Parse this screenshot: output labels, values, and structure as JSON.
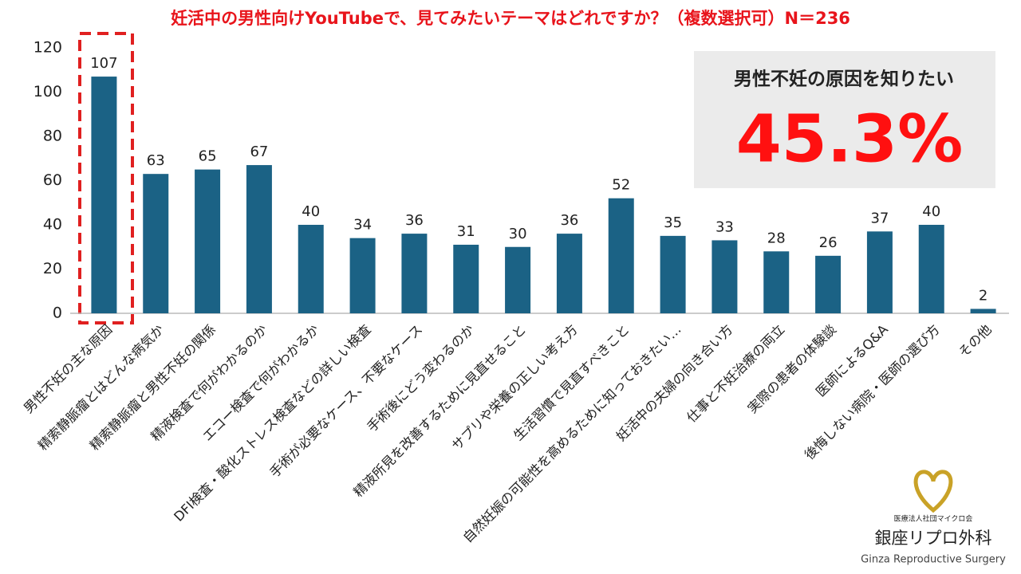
{
  "chart_data": {
    "type": "bar",
    "title": "妊活中の男性向けYouTubeで、見てみたいテーマはどれですか？（複数選択可）N＝236",
    "categories": [
      "男性不妊の主な原因",
      "精索静脈瘤とはどんな病気か",
      "精索静脈瘤と男性不妊の関係",
      "精液検査で何がわかるのか",
      "エコー検査で何がわかるか",
      "DFI検査・酸化ストレス検査などの詳しい検査",
      "手術が必要なケース、不要なケース",
      "手術後にどう変わるのか",
      "精液所見を改善するために見直せること",
      "サプリや栄養の正しい考え方",
      "生活習慣で見直すべきこと",
      "自然妊娠の可能性を高めるために知っておきたい…",
      "妊活中の夫婦の向き合い方",
      "仕事と不妊治療の両立",
      "実際の患者の体験談",
      "医師によるQ&A",
      "後悔しない病院・医師の選び方",
      "その他"
    ],
    "values": [
      107,
      63,
      65,
      67,
      40,
      34,
      36,
      31,
      30,
      36,
      52,
      35,
      33,
      28,
      26,
      37,
      40,
      2
    ],
    "color": "#1b6285",
    "ylim": [
      0,
      120
    ],
    "yticks": [
      0,
      20,
      40,
      60,
      80,
      100,
      120
    ],
    "grid": false,
    "callout": {
      "text": "男性不妊の原因を知りたい",
      "value_label": "45.3%"
    }
  },
  "logo": {
    "org": "医療法人社団マイクロ会",
    "name": "銀座リプロ外科",
    "english": "Ginza Reproductive Surgery"
  }
}
